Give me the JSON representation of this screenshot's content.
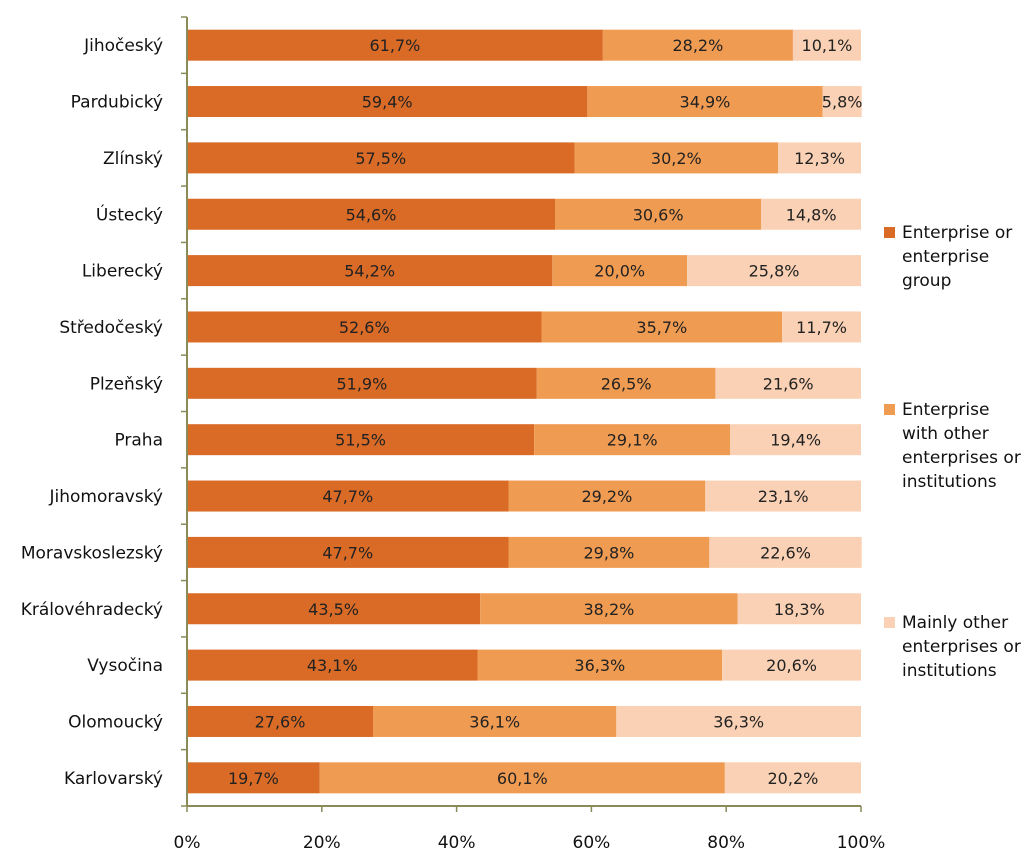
{
  "chart_data": {
    "type": "bar",
    "orientation": "horizontal",
    "stacked": true,
    "percent_stacked": true,
    "categories": [
      "Jihočeský",
      "Pardubický",
      "Zlínský",
      "Ústecký",
      "Liberecký",
      "Středočeský",
      "Plzeňský",
      "Praha",
      "Jihomoravský",
      "Moravskoslezský",
      "Královéhradecký",
      "Vysočina",
      "Olomoucký",
      "Karlovarský"
    ],
    "series": [
      {
        "name": "Enterprise or enterprise group",
        "color": "#D96B27",
        "values": [
          61.7,
          59.4,
          57.5,
          54.6,
          54.2,
          52.6,
          51.9,
          51.5,
          47.7,
          47.7,
          43.5,
          43.1,
          27.6,
          19.7
        ],
        "labels": [
          "61,7%",
          "59,4%",
          "57,5%",
          "54,6%",
          "54,2%",
          "52,6%",
          "51,9%",
          "51,5%",
          "47,7%",
          "47,7%",
          "43,5%",
          "43,1%",
          "27,6%",
          "19,7%"
        ]
      },
      {
        "name": "Enterprise with other enterprises or institutions",
        "color": "#EF9B52",
        "values": [
          28.2,
          34.9,
          30.2,
          30.6,
          20.0,
          35.7,
          26.5,
          29.1,
          29.2,
          29.8,
          38.2,
          36.3,
          36.1,
          60.1
        ],
        "labels": [
          "28,2%",
          "34,9%",
          "30,2%",
          "30,6%",
          "20,0%",
          "35,7%",
          "26,5%",
          "29,1%",
          "29,2%",
          "29,8%",
          "38,2%",
          "36,3%",
          "36,1%",
          "60,1%"
        ]
      },
      {
        "name": "Mainly other enterprises or institutions",
        "color": "#FAD1B4",
        "values": [
          10.1,
          5.8,
          12.3,
          14.8,
          25.8,
          11.7,
          21.6,
          19.4,
          23.1,
          22.6,
          18.3,
          20.6,
          36.3,
          20.2
        ],
        "labels": [
          "10,1%",
          "5,8%",
          "12,3%",
          "14,8%",
          "25,8%",
          "11,7%",
          "21,6%",
          "19,4%",
          "23,1%",
          "22,6%",
          "18,3%",
          "20,6%",
          "36,3%",
          "20,2%"
        ]
      }
    ],
    "legend": {
      "placement": "right",
      "entries": [
        [
          "Enterprise or",
          "enterprise",
          "group"
        ],
        [
          "Enterprise",
          "with other",
          "enterprises or",
          "institutions"
        ],
        [
          "Mainly other",
          "enterprises or",
          "institutions"
        ]
      ]
    },
    "x_ticks": [
      "0%",
      "20%",
      "40%",
      "60%",
      "80%",
      "100%"
    ],
    "xlim": [
      0,
      100
    ],
    "grid": false,
    "axis_color": "#8B8B5A"
  }
}
